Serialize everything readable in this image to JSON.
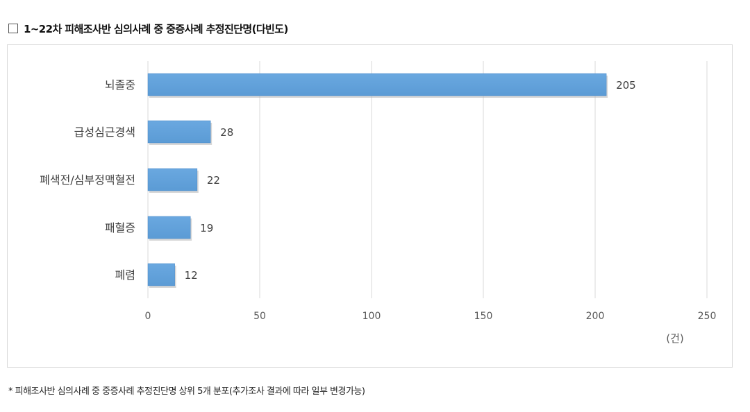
{
  "header": {
    "checkbox_icon": "empty-square-icon",
    "title": "1~22차 피해조사반 심의사례 중 중증사례 추정진단명(다빈도)"
  },
  "chart_data": {
    "type": "bar",
    "orientation": "horizontal",
    "categories": [
      "뇌졸중",
      "급성심근경색",
      "폐색전/심부정맥혈전",
      "패혈증",
      "폐렴"
    ],
    "values": [
      205,
      28,
      22,
      19,
      12
    ],
    "data_labels": [
      "205",
      "28",
      "22",
      "19",
      "12"
    ],
    "xlim": [
      0,
      250
    ],
    "xticks": [
      0,
      50,
      100,
      150,
      200,
      250
    ],
    "unit_label": "(건)",
    "grid": "vertical",
    "legend": "none",
    "bar_color": "#5b9bd5"
  },
  "footnote": "* 피해조사반 심의사례 중 중증사례 추정진단명 상위 5개 분포(추가조사 결과에 따라 일부 변경가능)"
}
